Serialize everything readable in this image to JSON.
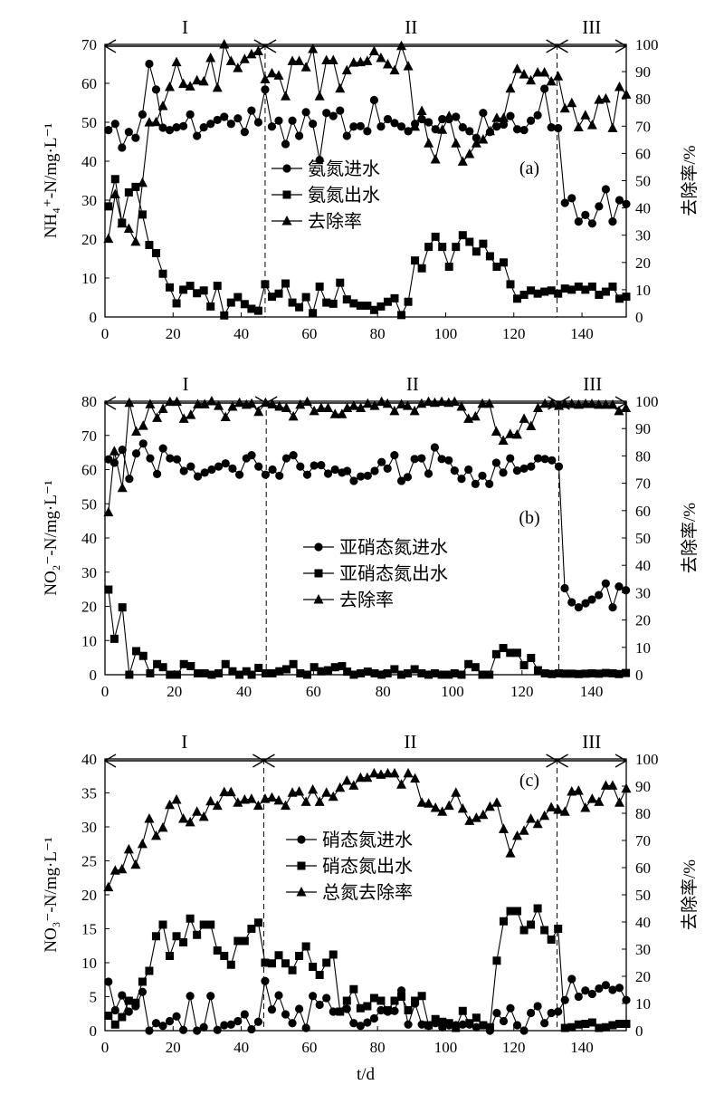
{
  "chart_data": [
    {
      "type": "line",
      "panel_label": "(a)",
      "ylabel": "NH₄⁺-N/mg·L⁻¹",
      "y2label": "去除率/%",
      "xlabel": "",
      "xlim": [
        0,
        153
      ],
      "ylim": [
        0,
        70
      ],
      "y2lim": [
        0,
        100
      ],
      "xticks": [
        0,
        20,
        40,
        60,
        80,
        100,
        120,
        140
      ],
      "yticks": [
        0,
        10,
        20,
        30,
        40,
        50,
        60,
        70
      ],
      "y2ticks": [
        0,
        10,
        20,
        30,
        40,
        50,
        60,
        70,
        80,
        90,
        100
      ],
      "phase_boundaries": [
        47,
        132.7
      ],
      "phases": [
        {
          "label": "I",
          "start": 0,
          "end": 47
        },
        {
          "label": "II",
          "start": 47,
          "end": 132.7
        },
        {
          "label": "III",
          "start": 132.7,
          "end": 153
        }
      ],
      "x": [
        1,
        3,
        5,
        7,
        9,
        11,
        13,
        15,
        17,
        19,
        21,
        23,
        25,
        27,
        29,
        31,
        33,
        35,
        37,
        39,
        41,
        43,
        45,
        47,
        49,
        51,
        53,
        55,
        57,
        59,
        61,
        63,
        65,
        67,
        69,
        71,
        73,
        75,
        77,
        79,
        81,
        83,
        85,
        87,
        89,
        91,
        93,
        95,
        97,
        99,
        101,
        103,
        105,
        107,
        109,
        111,
        113,
        115,
        117,
        119,
        121,
        123,
        125,
        127,
        129,
        131,
        133,
        135,
        137,
        139,
        141,
        143,
        145,
        147,
        149,
        151,
        153
      ],
      "series": [
        {
          "name": "氨氮进水",
          "marker": "circle",
          "axis": "left",
          "values": [
            48,
            49.6,
            43.5,
            47.5,
            46,
            52,
            65,
            58.4,
            48.6,
            48,
            48.7,
            49,
            52,
            46.5,
            48.7,
            49.6,
            50.6,
            51.4,
            49.6,
            51,
            47.5,
            53,
            50,
            58.4,
            48.9,
            50.4,
            44.4,
            50.4,
            46.5,
            52.6,
            49.6,
            40.3,
            52.4,
            51.6,
            53,
            46.5,
            48.9,
            49,
            47.7,
            55.7,
            48.9,
            50.8,
            49.8,
            48.9,
            47.7,
            49.6,
            50.8,
            50,
            48.2,
            50.8,
            50.8,
            51.4,
            48.7,
            47.7,
            46,
            52.4,
            47.5,
            48.9,
            49.4,
            51.6,
            48.2,
            48,
            50.4,
            51.8,
            58.6,
            48.7,
            48.5,
            29.3,
            30.5,
            24.5,
            26.2,
            24,
            28.4,
            32.8,
            24.5,
            30,
            29
          ]
        },
        {
          "name": "氨氮出水",
          "marker": "square",
          "axis": "left",
          "values": [
            28.4,
            35.4,
            24.2,
            32,
            33.4,
            26.3,
            18.5,
            16.4,
            11.1,
            7.6,
            3.5,
            7,
            8,
            6.1,
            6.8,
            2.7,
            8,
            0.4,
            3.7,
            5.1,
            3.3,
            2.1,
            1.6,
            8.4,
            5.2,
            6,
            8.6,
            3.7,
            2.5,
            5.1,
            1,
            7.8,
            3.7,
            3.4,
            8.8,
            4.5,
            3.5,
            2.9,
            2.9,
            1.8,
            2.7,
            3.9,
            4.8,
            0.5,
            3.9,
            14.5,
            12.5,
            18,
            20.6,
            18,
            12.9,
            18,
            21,
            19.3,
            16.8,
            18.8,
            15.6,
            12.9,
            14,
            8.4,
            4.7,
            5.7,
            6.8,
            6,
            6.5,
            6.8,
            6,
            7.3,
            7,
            7.8,
            7,
            7.8,
            5.7,
            6.5,
            7.8,
            4.7,
            5.2
          ]
        },
        {
          "name": "去除率",
          "marker": "triangle",
          "axis": "right",
          "values": [
            28.7,
            45,
            34.3,
            32.4,
            27.6,
            49.2,
            71.4,
            71.5,
            77.4,
            84.4,
            93.5,
            85.5,
            84.6,
            86.8,
            86.4,
            95,
            84.1,
            100,
            93.9,
            91.3,
            94.6,
            96.4,
            97.5,
            87.2,
            89.4,
            88.6,
            81,
            93.9,
            93.9,
            91.6,
            98.3,
            81,
            94.2,
            94.2,
            83.8,
            90.5,
            93.3,
            93.5,
            93.9,
            97.5,
            95,
            92.7,
            90.5,
            99.4,
            92,
            69.8,
            75.6,
            63.7,
            57.8,
            68.7,
            73.7,
            63.7,
            57,
            59.8,
            63.7,
            65.1,
            68.2,
            73,
            73,
            83.8,
            91,
            89,
            86.8,
            89.7,
            89.7,
            86.4,
            88.3,
            76.5,
            78.5,
            69.6,
            74,
            70.4,
            79.7,
            80.1,
            69.3,
            84.4,
            81.6
          ]
        }
      ]
    },
    {
      "type": "line",
      "panel_label": "(b)",
      "ylabel": "NO₂⁻-N/mg·L⁻¹",
      "y2label": "去除率/%",
      "xlabel": "",
      "xlim": [
        0,
        150
      ],
      "ylim": [
        0,
        80
      ],
      "y2lim": [
        0,
        100
      ],
      "xticks": [
        0,
        20,
        40,
        60,
        80,
        100,
        120,
        140
      ],
      "yticks": [
        0,
        10,
        20,
        30,
        40,
        50,
        60,
        70,
        80
      ],
      "y2ticks": [
        0,
        10,
        20,
        30,
        40,
        50,
        60,
        70,
        80,
        90,
        100
      ],
      "phase_boundaries": [
        46.4,
        130.6
      ],
      "phases": [
        {
          "label": "I",
          "start": 0,
          "end": 46.4
        },
        {
          "label": "II",
          "start": 46.4,
          "end": 130.6
        },
        {
          "label": "III",
          "start": 130.6,
          "end": 150
        }
      ],
      "x": [
        1,
        2.7,
        5,
        7,
        9,
        11,
        13,
        15,
        16.7,
        18.7,
        20.7,
        22.7,
        24.7,
        26.7,
        28.7,
        30.7,
        32.7,
        34.7,
        36.7,
        38.7,
        40.7,
        42.2,
        44.2,
        46.2,
        48.2,
        50.2,
        52.2,
        54.2,
        56.2,
        58.2,
        60.2,
        62.2,
        64.2,
        66.2,
        68.2,
        69.7,
        71.6,
        73.6,
        75.6,
        77.6,
        79.6,
        81.3,
        83.3,
        85.3,
        87.1,
        89.1,
        91.1,
        93.1,
        94.9,
        96.9,
        98.9,
        100.6,
        102.6,
        104.6,
        106.6,
        108.6,
        110.6,
        112.6,
        114.6,
        116.6,
        118.6,
        120.6,
        122.6,
        124.6,
        126.6,
        128.6,
        130.6,
        132.3,
        134.3,
        136.3,
        138.3,
        140.1,
        142.1,
        144.1,
        146.1,
        147.9,
        149.9
      ],
      "series": [
        {
          "name": "亚硝态氮进水",
          "marker": "circle",
          "axis": "left",
          "values": [
            63,
            62,
            65.8,
            57.3,
            64.7,
            67.6,
            63.3,
            58.7,
            66.2,
            63.3,
            63,
            59.6,
            60.9,
            58,
            59.1,
            60,
            60.9,
            61.8,
            60.3,
            58.5,
            63.3,
            64.2,
            60.9,
            58.5,
            60,
            58.2,
            63.3,
            64.2,
            60.9,
            58.5,
            61.2,
            61.3,
            58.8,
            60,
            59.1,
            59.6,
            56.7,
            58,
            58.2,
            59.6,
            62.2,
            60.3,
            64.2,
            56.7,
            57.8,
            63.1,
            63.3,
            58.8,
            66.5,
            63.1,
            62.7,
            59.7,
            57.3,
            60,
            55.8,
            58.2,
            55.8,
            62,
            59.1,
            63.3,
            59.7,
            60.3,
            60.9,
            63.3,
            63.1,
            62.7,
            60.9,
            25.3,
            21.2,
            19.7,
            20.9,
            22,
            23.3,
            26.7,
            19.7,
            25.8,
            24.7
          ]
        },
        {
          "name": "亚硝态氮出水",
          "marker": "square",
          "axis": "left",
          "values": [
            24.9,
            10.5,
            19.7,
            0,
            6.9,
            5.5,
            0.4,
            3.1,
            2.2,
            0,
            0,
            3.1,
            2.5,
            0.4,
            0.4,
            0,
            0.4,
            3.1,
            1,
            0,
            1,
            0,
            2,
            0.4,
            0.4,
            1,
            1.6,
            3.1,
            0.4,
            0,
            2.2,
            1,
            1.3,
            2.2,
            2.5,
            0.9,
            0,
            0.4,
            0.9,
            0.4,
            0,
            0.4,
            1.6,
            0,
            0.4,
            1.6,
            0.4,
            0,
            0.4,
            0,
            0,
            0.4,
            0,
            3.1,
            2.2,
            0,
            0,
            6,
            7.8,
            6.4,
            6.4,
            2.8,
            4.9,
            1.3,
            0.4,
            0.2,
            0.4,
            0.3,
            0.3,
            0.2,
            0.3,
            0.4,
            0.3,
            0.5,
            0.4,
            0.2,
            0.5
          ]
        },
        {
          "name": "去除率",
          "marker": "triangle",
          "axis": "right",
          "values": [
            59.4,
            81.7,
            68.3,
            99.4,
            88.9,
            91,
            98.9,
            93.9,
            97.2,
            99.8,
            99.8,
            93.6,
            95,
            98.9,
            98.9,
            100,
            98.3,
            94.2,
            98,
            99.4,
            98.7,
            99.1,
            96.1,
            99.4,
            98.9,
            98,
            97.5,
            94.4,
            98.7,
            99.8,
            96.4,
            97.5,
            97.5,
            95.3,
            95.3,
            97.5,
            98.3,
            97.5,
            99.1,
            98.3,
            99.8,
            99.1,
            96.4,
            98.9,
            98.3,
            96.4,
            99.1,
            99.8,
            99.4,
            99.8,
            99.4,
            99.8,
            98,
            93.6,
            94.4,
            99.1,
            99.1,
            88.9,
            85.6,
            88,
            87.8,
            93.6,
            90.9,
            97.5,
            99.1,
            99.1,
            98.3,
            99,
            99,
            98.7,
            99,
            99,
            98.7,
            98.7,
            98.7,
            96.4,
            97.5
          ]
        }
      ]
    },
    {
      "type": "line",
      "panel_label": "(c)",
      "ylabel": "NO₃⁻-N/mg·L⁻¹",
      "y2label": "去除率/%",
      "xlabel": "t/d",
      "xlim": [
        0,
        153
      ],
      "ylim": [
        0,
        40
      ],
      "y2lim": [
        0,
        100
      ],
      "xticks": [
        0,
        20,
        40,
        60,
        80,
        100,
        120,
        140
      ],
      "yticks": [
        0,
        5,
        10,
        15,
        20,
        25,
        30,
        35,
        40
      ],
      "y2ticks": [
        0,
        10,
        20,
        30,
        40,
        50,
        60,
        70,
        80,
        90,
        100
      ],
      "phase_boundaries": [
        46.6,
        132.7
      ],
      "phases": [
        {
          "label": "I",
          "start": 0,
          "end": 46.6
        },
        {
          "label": "II",
          "start": 46.6,
          "end": 132.7
        },
        {
          "label": "III",
          "start": 132.7,
          "end": 153
        }
      ],
      "x": [
        1,
        3,
        5,
        7,
        9,
        11,
        13,
        15,
        17,
        19,
        21,
        23,
        25,
        27,
        29,
        31,
        33,
        35,
        37,
        39,
        41,
        43,
        45,
        47,
        49,
        51,
        53,
        55,
        57,
        59,
        61,
        63,
        65,
        67,
        69,
        71,
        73,
        75,
        77,
        79,
        81,
        83,
        85,
        87,
        89,
        91,
        93,
        95,
        97,
        99,
        101,
        103,
        105,
        107,
        109,
        111,
        113,
        115,
        117,
        119,
        121,
        123,
        125,
        127,
        129,
        131,
        133,
        135,
        137,
        139,
        141,
        143,
        145,
        147,
        149,
        151,
        153
      ],
      "series": [
        {
          "name": "硝态氮进水",
          "marker": "circle",
          "axis": "left",
          "values": [
            7.2,
            3,
            5.2,
            2.8,
            3.6,
            5.7,
            0,
            1.1,
            0.7,
            1.4,
            2.1,
            0.1,
            5.1,
            0,
            0.5,
            5.1,
            0.1,
            0.8,
            0.9,
            1.4,
            2.4,
            0.2,
            1.3,
            7.3,
            3.1,
            5.2,
            2.4,
            1.1,
            3.2,
            0.4,
            5.1,
            3.8,
            4.8,
            2.8,
            2.8,
            3.2,
            1.1,
            0.7,
            1.2,
            1.8,
            3,
            2.8,
            2.9,
            5.9,
            0.9,
            4,
            0.9,
            0.7,
            1.1,
            0.5,
            0.8,
            0.8,
            0.9,
            0.9,
            0.5,
            0.8,
            0,
            2.6,
            1.4,
            3.3,
            0.8,
            0,
            2.6,
            3.6,
            1.1,
            2.6,
            2.8,
            4.5,
            7.6,
            5,
            5.9,
            5.4,
            6.2,
            6.7,
            6,
            6.3,
            4.5
          ]
        },
        {
          "name": "硝态氮出水",
          "marker": "square",
          "axis": "left",
          "values": [
            2.2,
            0.9,
            2,
            4.4,
            4.1,
            7.2,
            8.8,
            13.9,
            15.6,
            11,
            13.9,
            13,
            16.5,
            14.1,
            15.6,
            15.6,
            11.8,
            11,
            9.7,
            13.2,
            13.2,
            15,
            15.9,
            10,
            9.9,
            11.1,
            9.9,
            8.9,
            11,
            12.4,
            9.4,
            8.2,
            10,
            11.2,
            2.8,
            4.4,
            6.1,
            3.3,
            3.6,
            4.8,
            4.4,
            3,
            4.4,
            5,
            3,
            4.4,
            5.1,
            0.8,
            1.7,
            1.3,
            1.1,
            0.4,
            2.9,
            1.1,
            1.9,
            0.8,
            0.5,
            10.3,
            16.1,
            17.6,
            17.6,
            14.8,
            15.6,
            18,
            14.8,
            13.4,
            15,
            0.4,
            0.5,
            0.9,
            1,
            1.2,
            0.4,
            0.5,
            0.8,
            1,
            1
          ]
        },
        {
          "name": "总氮去除率",
          "marker": "triangle",
          "axis": "right",
          "values": [
            52.8,
            58.9,
            59.4,
            66.7,
            61.1,
            68.7,
            78,
            71.7,
            74.7,
            83.1,
            85,
            78,
            76.7,
            80.6,
            78.7,
            84.4,
            82.8,
            87.8,
            87.8,
            83.9,
            85,
            85.3,
            82.8,
            85.3,
            85.8,
            84.7,
            82.8,
            87.6,
            88,
            84.2,
            88.7,
            84.2,
            87.6,
            86.1,
            89.4,
            92,
            90.2,
            93.1,
            93.1,
            94.7,
            94.2,
            94.7,
            94.7,
            90.6,
            94.7,
            92.8,
            83.9,
            83.6,
            82,
            80.6,
            82.8,
            87.6,
            81.7,
            77.2,
            78.3,
            79.4,
            82.4,
            83.9,
            74.2,
            65.3,
            71.7,
            73.6,
            78,
            76.1,
            79.1,
            82.2,
            81.3,
            80.6,
            88,
            88.3,
            82,
            85.3,
            84.2,
            90.2,
            90.2,
            83.9,
            89.1
          ]
        }
      ]
    }
  ],
  "colors": {
    "ink": "#000000",
    "background": "#ffffff"
  }
}
